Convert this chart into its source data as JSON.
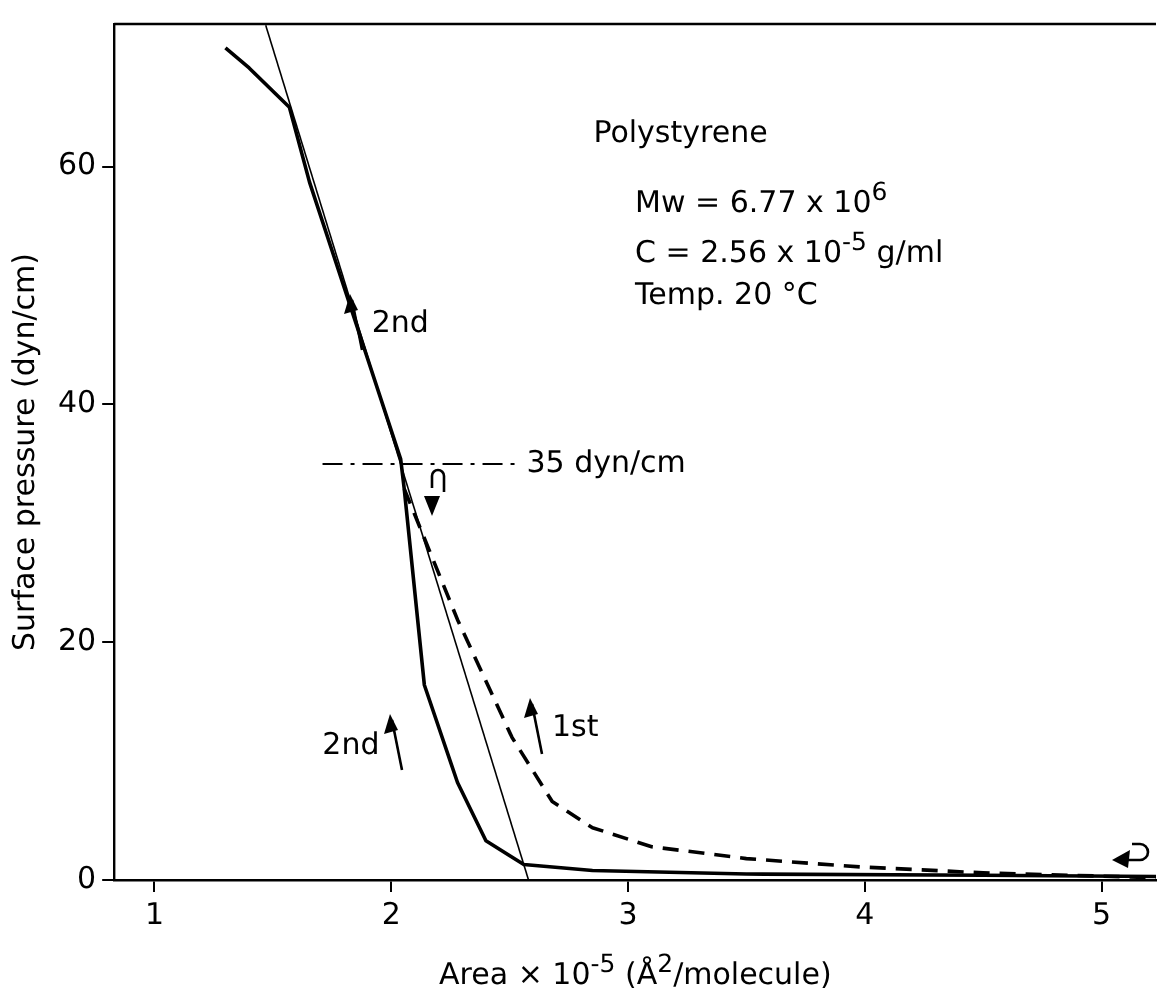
{
  "chart_data": {
    "type": "line",
    "xlabel": "Area × 10$^{-5}$ (Å$^{2}$/molecule)",
    "ylabel": "Surface pressure (dyn/cm)",
    "xlim": [
      0.83,
      5.23
    ],
    "ylim": [
      0,
      72
    ],
    "xticks": [
      1,
      2,
      3,
      4,
      5
    ],
    "yticks": [
      0,
      20,
      40,
      60
    ],
    "grid": false,
    "legend": false,
    "marker": "none",
    "series": [
      {
        "color": "#000000",
        "line_style": "solid",
        "x": [
          1.3,
          1.4,
          1.57,
          1.655,
          2.04,
          2.055,
          2.14,
          2.28,
          2.4,
          2.56,
          2.85,
          3.5,
          4.5,
          5.23
        ],
        "values": [
          70,
          68.3,
          65,
          58.7,
          35.4,
          32.9,
          16.4,
          8.2,
          3.3,
          1.3,
          0.8,
          0.5,
          0.4,
          0.3
        ]
      },
      {
        "color": "#000000",
        "line_style": "dashed",
        "x": [
          2.055,
          2.28,
          2.51,
          2.68,
          2.85,
          3.1,
          3.5,
          3.98,
          4.5,
          5.23
        ],
        "values": [
          32.9,
          21.9,
          12,
          6.6,
          4.4,
          2.8,
          1.8,
          1.1,
          0.6,
          0.2
        ]
      },
      {
        "type": "line",
        "color": "#000000",
        "line_style": "solid",
        "x": [
          1.47,
          2.58
        ],
        "values": [
          71.9,
          0
        ]
      }
    ],
    "ref_lines": [
      {
        "axis": "y",
        "value": 35,
        "label": "35 dyn/cm",
        "line_style": "dashdot"
      }
    ],
    "annotations": [
      {
        "text": "2nd",
        "x": 1.85,
        "y": 47
      },
      {
        "text": "2nd",
        "x": 2.14,
        "y": 16.4
      },
      {
        "text": "1st",
        "x": 2.51,
        "y": 12
      },
      "Polystyrene",
      "Mw = 6.77 x 10$^{6}$",
      "C = 2.56 x 10$^{-5}$ g/ml",
      "Temp. 20 °C"
    ]
  }
}
